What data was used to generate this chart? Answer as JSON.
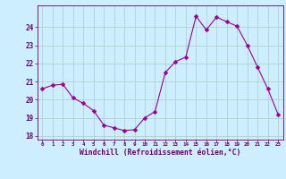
{
  "x": [
    0,
    1,
    2,
    3,
    4,
    5,
    6,
    7,
    8,
    9,
    10,
    11,
    12,
    13,
    14,
    15,
    16,
    17,
    18,
    19,
    20,
    21,
    22,
    23
  ],
  "y": [
    20.6,
    20.8,
    20.85,
    20.1,
    19.8,
    19.4,
    18.6,
    18.45,
    18.3,
    18.35,
    19.0,
    19.35,
    21.5,
    22.1,
    22.35,
    24.6,
    23.85,
    24.55,
    24.3,
    24.05,
    23.0,
    21.8,
    20.6,
    19.2
  ],
  "line_color": "#990099",
  "marker": "D",
  "marker_size": 2.5,
  "bg_color": "#cceeff",
  "grid_color": "#aacccc",
  "xlabel": "Windchill (Refroidissement éolien,°C)",
  "xlabel_color": "#660066",
  "tick_color": "#660066",
  "ylim_min": 17.8,
  "ylim_max": 25.2,
  "yticks": [
    18,
    19,
    20,
    21,
    22,
    23,
    24
  ],
  "xlim_min": -0.5,
  "xlim_max": 23.5
}
